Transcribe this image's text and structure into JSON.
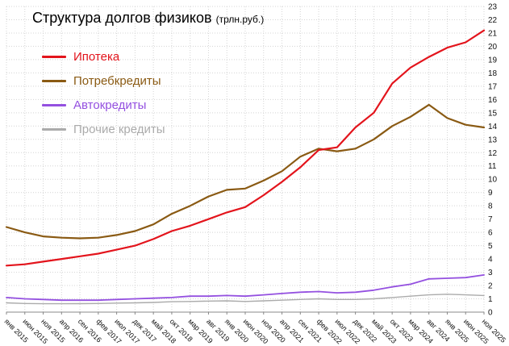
{
  "chart": {
    "title": "Структура долгов физиков",
    "title_units": "(трлн.руб.)"
  },
  "chart_data": {
    "type": "line",
    "title": "Структура долгов физиков (трлн.руб.)",
    "xlabel": "",
    "ylabel": "",
    "ylim": [
      0,
      23
    ],
    "ytick_step": 1,
    "grid": true,
    "grid_color": "#d4d4d4",
    "legend_position": "top-left",
    "y_axis_side": "right",
    "categories": [
      "янв 2015",
      "июн 2015",
      "ноя 2015",
      "апр 2016",
      "сен 2016",
      "фев 2017",
      "июл 2017",
      "дек 2017",
      "май 2018",
      "окт 2018",
      "мар 2019",
      "авг 2019",
      "янв 2020",
      "июн 2020",
      "ноя 2020",
      "апр 2021",
      "сен 2021",
      "фев 2022",
      "июл 2022",
      "дек 2022",
      "май 2023",
      "окт 2023",
      "мар 2024",
      "авг 2024",
      "янв 2025",
      "июн 2025",
      "ноя 2025"
    ],
    "series": [
      {
        "name": "Ипотека",
        "color": "#e3141c",
        "values": [
          3.5,
          3.6,
          3.8,
          4.0,
          4.2,
          4.4,
          4.7,
          5.0,
          5.5,
          6.1,
          6.5,
          7.0,
          7.5,
          7.9,
          8.8,
          9.8,
          10.9,
          12.2,
          12.4,
          13.9,
          15.0,
          17.2,
          18.4,
          19.2,
          19.9,
          20.3,
          21.2
        ]
      },
      {
        "name": "Потребкредиты",
        "color": "#8a5a13",
        "values": [
          6.4,
          6.0,
          5.7,
          5.6,
          5.55,
          5.6,
          5.8,
          6.1,
          6.6,
          7.4,
          8.0,
          8.7,
          9.2,
          9.3,
          9.9,
          10.6,
          11.7,
          12.3,
          12.1,
          12.3,
          13.0,
          14.0,
          14.7,
          15.6,
          14.6,
          14.1,
          13.9
        ]
      },
      {
        "name": "Автокредиты",
        "color": "#9450e0",
        "values": [
          1.1,
          1.0,
          0.95,
          0.9,
          0.9,
          0.9,
          0.95,
          1.0,
          1.05,
          1.1,
          1.2,
          1.2,
          1.25,
          1.2,
          1.3,
          1.4,
          1.5,
          1.55,
          1.45,
          1.5,
          1.65,
          1.9,
          2.1,
          2.5,
          2.55,
          2.6,
          2.8
        ]
      },
      {
        "name": "Прочие кредиты",
        "color": "#ababab",
        "values": [
          0.7,
          0.65,
          0.63,
          0.63,
          0.64,
          0.65,
          0.68,
          0.7,
          0.73,
          0.78,
          0.8,
          0.83,
          0.85,
          0.8,
          0.85,
          0.9,
          0.95,
          1.0,
          0.95,
          0.95,
          1.0,
          1.1,
          1.2,
          1.3,
          1.35,
          1.3,
          1.25
        ]
      }
    ]
  }
}
